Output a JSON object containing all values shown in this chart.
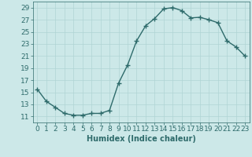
{
  "x": [
    0,
    1,
    2,
    3,
    4,
    5,
    6,
    7,
    8,
    9,
    10,
    11,
    12,
    13,
    14,
    15,
    16,
    17,
    18,
    19,
    20,
    21,
    22,
    23
  ],
  "y": [
    15.5,
    13.5,
    12.5,
    11.5,
    11.2,
    11.2,
    11.5,
    11.5,
    12.0,
    16.5,
    19.5,
    23.5,
    26.0,
    27.2,
    28.8,
    29.0,
    28.5,
    27.3,
    27.4,
    27.0,
    26.5,
    23.5,
    22.5,
    21.0
  ],
  "line_color": "#2e6b6b",
  "marker": "+",
  "bg_color": "#cce8e8",
  "grid_color": "#b0d4d4",
  "xlabel": "Humidex (Indice chaleur)",
  "ylim": [
    10,
    30
  ],
  "xlim": [
    -0.5,
    23.5
  ],
  "yticks": [
    11,
    13,
    15,
    17,
    19,
    21,
    23,
    25,
    27,
    29
  ],
  "xticks": [
    0,
    1,
    2,
    3,
    4,
    5,
    6,
    7,
    8,
    9,
    10,
    11,
    12,
    13,
    14,
    15,
    16,
    17,
    18,
    19,
    20,
    21,
    22,
    23
  ],
  "xlabel_fontsize": 7,
  "tick_fontsize": 6.5,
  "line_width": 1.0,
  "marker_size": 4
}
